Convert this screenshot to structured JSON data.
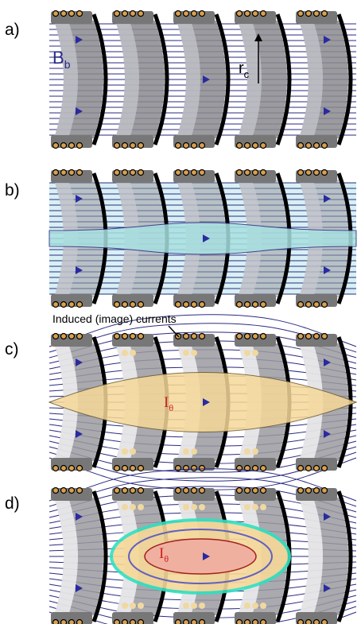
{
  "panels": [
    {
      "label": "a)",
      "field": {
        "main": "B",
        "sub": "b"
      },
      "radius": {
        "main": "r",
        "sub": "c"
      }
    },
    {
      "label": "b)"
    },
    {
      "label": "c)",
      "caption": "Induced (image) currents",
      "current": {
        "main": "I",
        "sub": "θ"
      }
    },
    {
      "label": "d)",
      "current": {
        "main": "I",
        "sub": "θ"
      }
    }
  ]
}
